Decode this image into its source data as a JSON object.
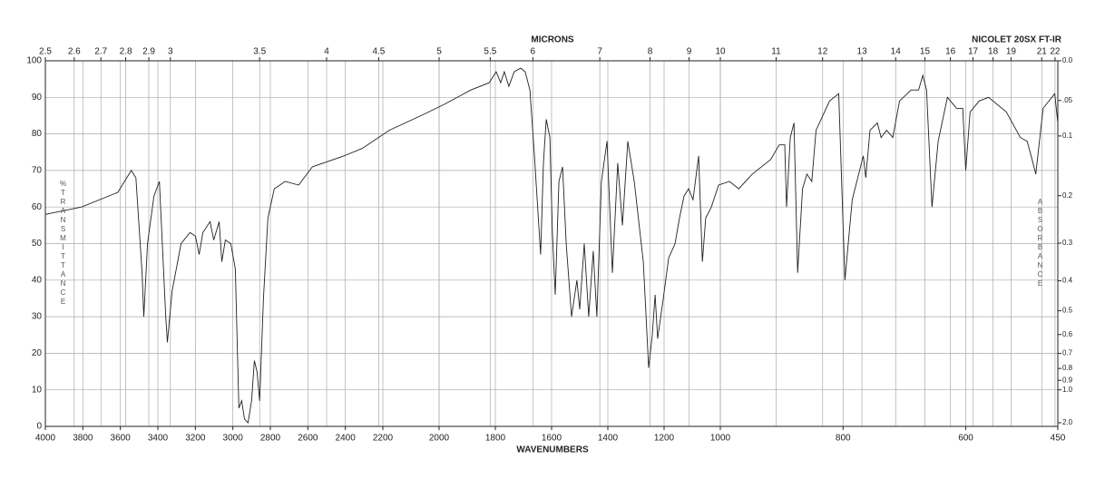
{
  "chart_data": {
    "type": "line",
    "title": "MICRONS",
    "subtitle": "NICOLET 20SX FT-IR",
    "x_label": "WAVENUMBERS",
    "y_label": "%TRANSMITTANCE",
    "y2_label": "ABSORBANCE",
    "color": "#222222",
    "grid": true,
    "xlim": [
      4000,
      450
    ],
    "x_scale_breaks": [
      2200,
      1000
    ],
    "xticks": [
      4000,
      3800,
      3600,
      3400,
      3200,
      3000,
      2800,
      2600,
      2400,
      2200,
      2000,
      1800,
      1600,
      1400,
      1200,
      1000,
      800,
      600,
      450
    ],
    "x2ticks": [
      2.5,
      2.6,
      2.7,
      2.8,
      2.9,
      3,
      3.5,
      4,
      4.5,
      5,
      5.5,
      6,
      7,
      8,
      9,
      10,
      11,
      12,
      13,
      14,
      15,
      16,
      17,
      18,
      19,
      21,
      22
    ],
    "ylim": [
      0,
      100
    ],
    "yticks": [
      0,
      10,
      20,
      30,
      40,
      50,
      60,
      70,
      80,
      90,
      100
    ],
    "y2ticks": [
      {
        "value": 0,
        "label": "0.0"
      },
      {
        "value": 0.05,
        "label": ".05"
      },
      0.1,
      0.2,
      0.3,
      0.4,
      0.5,
      0.6,
      0.7,
      0.8,
      0.9,
      {
        "value": 1,
        "label": "1.0"
      },
      {
        "value": 2,
        "label": "2.0"
      }
    ],
    "x": [
      4000,
      3807,
      3614,
      3542,
      3517,
      3484,
      3475,
      3455,
      3421,
      3392,
      3358,
      3349,
      3324,
      3276,
      3228,
      3199,
      3180,
      3160,
      3122,
      3102,
      3073,
      3059,
      3040,
      3011,
      2987,
      2968,
      2953,
      2938,
      2919,
      2900,
      2885,
      2871,
      2857,
      2837,
      2813,
      2779,
      2721,
      2649,
      2576,
      2407,
      2311,
      2177,
      2064,
      1984,
      1887,
      1822,
      1797,
      1781,
      1768,
      1752,
      1733,
      1710,
      1694,
      1677,
      1661,
      1639,
      1629,
      1619,
      1606,
      1597,
      1587,
      1574,
      1561,
      1548,
      1529,
      1510,
      1500,
      1484,
      1468,
      1452,
      1439,
      1423,
      1403,
      1384,
      1365,
      1348,
      1329,
      1306,
      1274,
      1255,
      1242,
      1232,
      1223,
      1203,
      1184,
      1161,
      1145,
      1129,
      1113,
      1097,
      1077,
      1064,
      1052,
      1032,
      1006,
      985,
      970,
      948,
      918,
      904,
      895,
      892,
      886,
      880,
      874,
      866,
      859,
      851,
      844,
      822,
      807,
      797,
      785,
      767,
      763,
      756,
      744,
      738,
      729,
      719,
      708,
      689,
      677,
      670,
      664,
      655,
      645,
      630,
      615,
      605,
      600,
      593,
      578,
      563,
      534,
      511,
      500,
      492,
      486,
      474,
      455,
      450
    ],
    "values": [
      58,
      60,
      64,
      70,
      68,
      42,
      30,
      50,
      63,
      67,
      30,
      23,
      37,
      50,
      53,
      52,
      47,
      53,
      56,
      51,
      56,
      45,
      51,
      50,
      43,
      5,
      7,
      2,
      1,
      7,
      18,
      15,
      7,
      35,
      57,
      65,
      67,
      66,
      71,
      74,
      76,
      81,
      85,
      88,
      92,
      94,
      97,
      94,
      97,
      93,
      97,
      98,
      97,
      92,
      74,
      47,
      72,
      84,
      79,
      53,
      36,
      67,
      71,
      50,
      30,
      40,
      32,
      50,
      30,
      48,
      30,
      67,
      78,
      42,
      72,
      55,
      78,
      67,
      45,
      16,
      25,
      36,
      24,
      35,
      46,
      50,
      57,
      63,
      65,
      62,
      74,
      45,
      57,
      60,
      66,
      67,
      65,
      69,
      73,
      77,
      77,
      60,
      79,
      83,
      42,
      65,
      69,
      67,
      81,
      89,
      91,
      40,
      62,
      74,
      68,
      81,
      83,
      79,
      81,
      79,
      89,
      92,
      92,
      96,
      92,
      60,
      78,
      90,
      87,
      87,
      70,
      86,
      89,
      90,
      86,
      79,
      78,
      73,
      69,
      87,
      91,
      83
    ]
  }
}
